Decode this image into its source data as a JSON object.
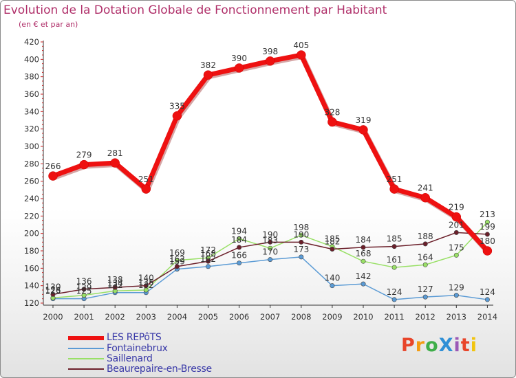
{
  "title": "Evolution de la Dotation Globale de Fonctionnement par Habitant",
  "subtitle": "(en € et par an)",
  "logo": {
    "text": "ProXiti",
    "colors": [
      "#e8452a",
      "#f39c12",
      "#3fae49",
      "#2f8fd6",
      "#9b59b6",
      "#e8452a",
      "#f1c40f"
    ]
  },
  "chart_data": {
    "type": "line",
    "title": "Evolution de la Dotation Globale de Fonctionnement par Habitant",
    "subtitle": "(en € et par an)",
    "xlabel": "",
    "ylabel": "",
    "x": [
      "2000",
      "2001",
      "2002",
      "2003",
      "2004",
      "2005",
      "2006",
      "2007",
      "2008",
      "2009",
      "2010",
      "2011",
      "2012",
      "2013",
      "2014"
    ],
    "ylim": [
      120,
      420
    ],
    "yticks": [
      120,
      140,
      160,
      180,
      200,
      220,
      240,
      260,
      280,
      300,
      320,
      340,
      360,
      380,
      400,
      420
    ],
    "grid": false,
    "legend_position": "bottom-left",
    "series": [
      {
        "name": "LES REPôTS",
        "color": "#ee1111",
        "values": [
          266,
          279,
          281,
          251,
          335,
          382,
          390,
          398,
          405,
          328,
          319,
          251,
          241,
          219,
          180
        ],
        "labels": [
          "266",
          "279",
          "281",
          "251",
          "335",
          "382",
          "390",
          "398",
          "405",
          "328",
          "319",
          "251",
          "241",
          "219",
          "180"
        ]
      },
      {
        "name": "Fontainebrux",
        "color": "#5b9bd5",
        "values": [
          125,
          125,
          132,
          132,
          159,
          162,
          166,
          170,
          173,
          140,
          142,
          124,
          127,
          129,
          124
        ],
        "labels": [
          "125",
          "125",
          "132",
          "132",
          "159",
          "162",
          "166",
          "170",
          "173",
          "140",
          "142",
          "124",
          "127",
          "129",
          "124"
        ]
      },
      {
        "name": "Saillenard",
        "color": "#99e066",
        "values": [
          126,
          129,
          134,
          135,
          169,
          172,
          194,
          183,
          198,
          185,
          168,
          161,
          164,
          175,
          213
        ],
        "labels": [
          "126",
          "129",
          "134",
          "135",
          "169",
          "172",
          "194",
          "183",
          "198",
          "185",
          "168",
          "161",
          "164",
          "175",
          "213"
        ]
      },
      {
        "name": "Beaurepaire-en-Bresse",
        "color": "#6b1f2a",
        "values": [
          130,
          136,
          138,
          140,
          162,
          168,
          184,
          190,
          190,
          182,
          184,
          185,
          188,
          201,
          199
        ],
        "labels": [
          "130",
          "136",
          "138",
          "140",
          "162",
          "168",
          "184",
          "190",
          "190",
          "182",
          "184",
          "185",
          "188",
          "201",
          "199"
        ]
      }
    ]
  }
}
